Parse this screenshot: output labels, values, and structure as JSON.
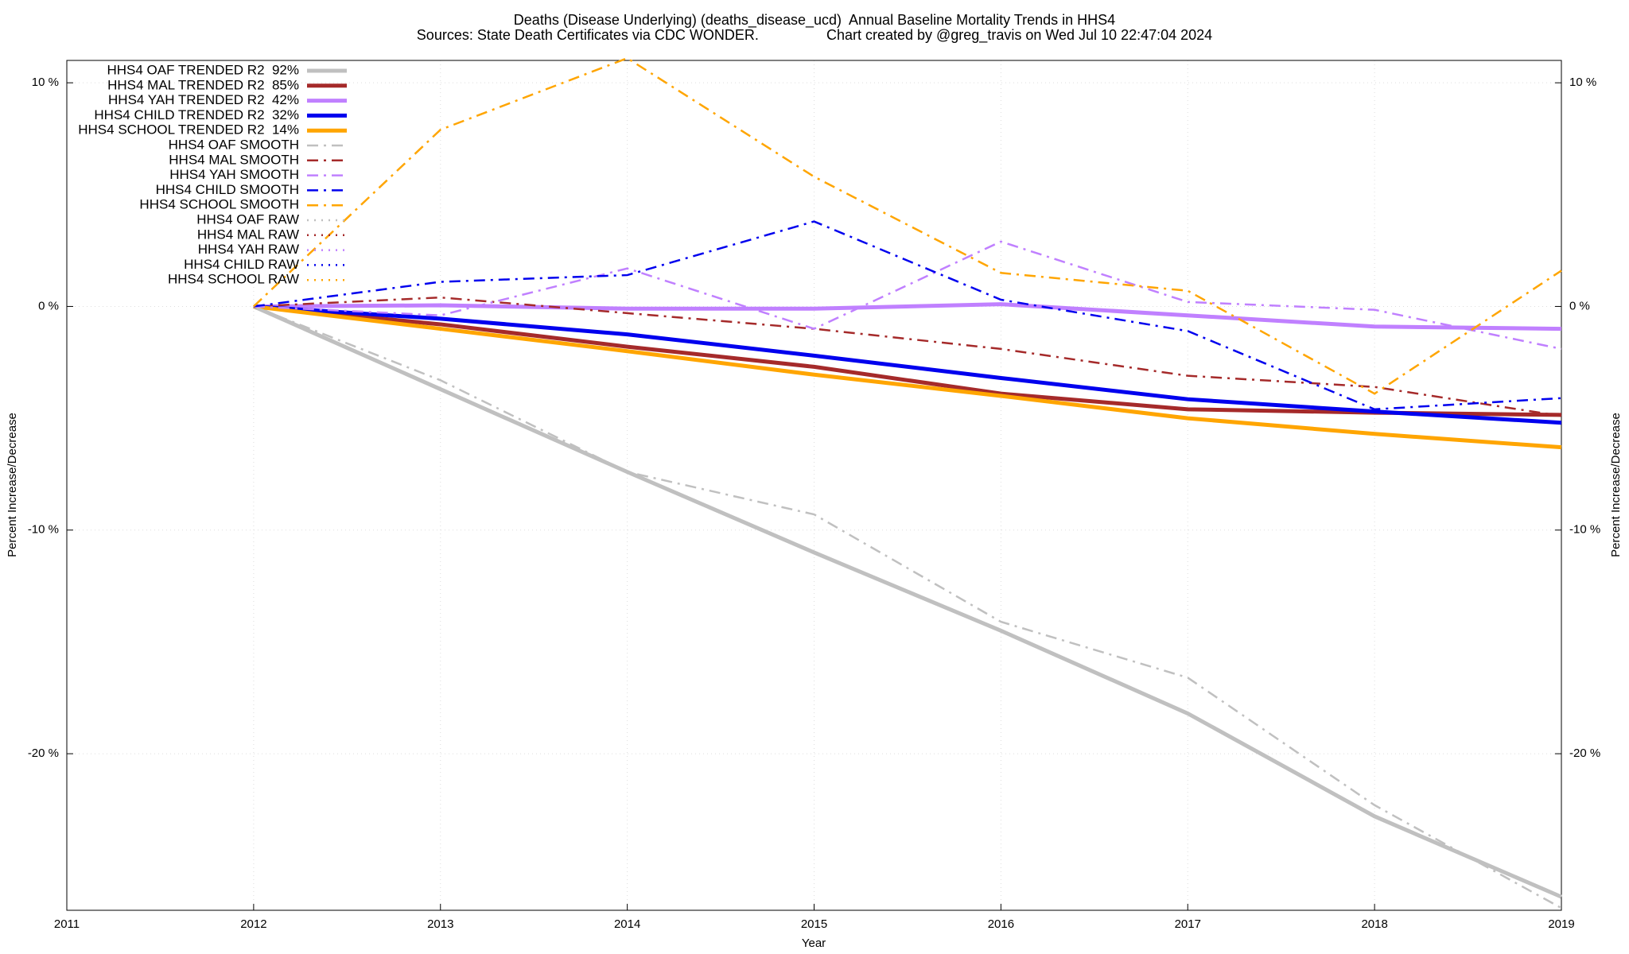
{
  "chart_data": {
    "type": "line",
    "title": "Deaths (Disease Underlying) (deaths_disease_ucd)  Annual Baseline Mortality Trends in HHS4",
    "subtitle": "Sources: State Death Certificates via CDC WONDER.                 Chart created by @greg_travis on Wed Jul 10 22:47:04 2024",
    "xlabel": "Year",
    "ylabel": "Percent Increase/Decrease",
    "y2label": "Percent Increase/Decrease",
    "x": [
      2012,
      2013,
      2014,
      2015,
      2016,
      2017,
      2018,
      2019
    ],
    "xlim": [
      2011,
      2019
    ],
    "xticks": [
      2011,
      2012,
      2013,
      2014,
      2015,
      2016,
      2017,
      2018,
      2019
    ],
    "ylim": [
      -27,
      11
    ],
    "yticks": [
      {
        "value": 10,
        "label": "10 %"
      },
      {
        "value": 0,
        "label": "0 %"
      },
      {
        "value": -10,
        "label": "-10 %"
      },
      {
        "value": -20,
        "label": "-20 %"
      }
    ],
    "grid": true,
    "legend": "top-left",
    "series": [
      {
        "name": "HHS4 OAF TRENDED R2  92%",
        "color": "#c0c0c0",
        "style": "solid",
        "values": [
          0,
          -3.7,
          -7.4,
          -11.0,
          -14.5,
          -18.2,
          -22.8,
          -26.4
        ]
      },
      {
        "name": "HHS4 MAL TRENDED R2  85%",
        "color": "#a52a2a",
        "style": "solid",
        "values": [
          0,
          -0.8,
          -1.8,
          -2.7,
          -3.9,
          -4.6,
          -4.75,
          -4.85
        ]
      },
      {
        "name": "HHS4 YAH TRENDED R2  42%",
        "color": "#c080ff",
        "style": "solid",
        "values": [
          0,
          0.05,
          -0.1,
          -0.1,
          0.1,
          -0.4,
          -0.9,
          -1.0
        ]
      },
      {
        "name": "HHS4 CHILD TRENDED R2  32%",
        "color": "#0000ee",
        "style": "solid",
        "values": [
          0,
          -0.55,
          -1.25,
          -2.2,
          -3.2,
          -4.15,
          -4.7,
          -5.2
        ]
      },
      {
        "name": "HHS4 SCHOOL TRENDED R2  14%",
        "color": "#ffa500",
        "style": "solid",
        "values": [
          0,
          -1.0,
          -2.0,
          -3.05,
          -4.0,
          -5.0,
          -5.7,
          -6.3
        ]
      },
      {
        "name": "HHS4 OAF SMOOTH",
        "color": "#c0c0c0",
        "style": "dashdot",
        "values": [
          0,
          -3.3,
          -7.4,
          -9.3,
          -14.1,
          -16.6,
          -22.3,
          -26.9
        ]
      },
      {
        "name": "HHS4 MAL SMOOTH",
        "color": "#a52a2a",
        "style": "dashdot",
        "values": [
          0,
          0.4,
          -0.3,
          -1.0,
          -1.9,
          -3.1,
          -3.6,
          -4.9
        ]
      },
      {
        "name": "HHS4 YAH SMOOTH",
        "color": "#c080ff",
        "style": "dashdot",
        "values": [
          0,
          -0.4,
          1.7,
          -1.0,
          2.9,
          0.2,
          -0.15,
          -1.9
        ]
      },
      {
        "name": "HHS4 CHILD SMOOTH",
        "color": "#0000ee",
        "style": "dashdot",
        "values": [
          0,
          1.1,
          1.4,
          3.8,
          0.3,
          -1.1,
          -4.6,
          -4.1
        ]
      },
      {
        "name": "HHS4 SCHOOL SMOOTH",
        "color": "#ffa500",
        "style": "dashdot",
        "values": [
          0,
          7.9,
          11.1,
          5.8,
          1.5,
          0.7,
          -3.9,
          1.6
        ]
      },
      {
        "name": "HHS4 OAF RAW",
        "color": "#c0c0c0",
        "style": "dotted",
        "values": [
          null,
          null,
          null,
          null,
          null,
          null,
          null,
          null
        ]
      },
      {
        "name": "HHS4 MAL RAW",
        "color": "#a52a2a",
        "style": "dotted",
        "values": [
          null,
          null,
          null,
          null,
          null,
          null,
          null,
          null
        ]
      },
      {
        "name": "HHS4 YAH RAW",
        "color": "#c080ff",
        "style": "dotted",
        "values": [
          null,
          null,
          null,
          null,
          null,
          null,
          null,
          null
        ]
      },
      {
        "name": "HHS4 CHILD RAW",
        "color": "#0000ee",
        "style": "dotted",
        "values": [
          null,
          null,
          null,
          null,
          null,
          null,
          null,
          null
        ]
      },
      {
        "name": "HHS4 SCHOOL RAW",
        "color": "#ffa500",
        "style": "dotted",
        "values": [
          null,
          null,
          null,
          null,
          null,
          null,
          null,
          null
        ]
      }
    ]
  }
}
